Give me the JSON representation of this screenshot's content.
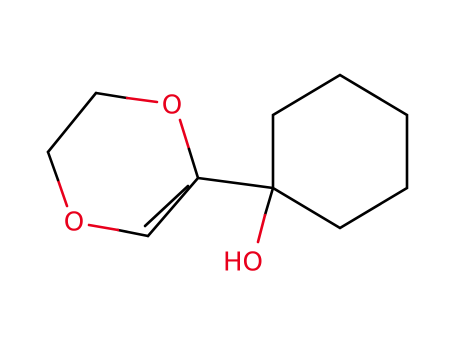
{
  "atoms": [
    {
      "label": "O"
    },
    {
      "label": "O"
    },
    {
      "label": "HO"
    }
  ]
}
